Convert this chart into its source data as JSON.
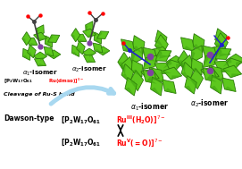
{
  "bg_color": "#ffffff",
  "fig_width": 2.71,
  "fig_height": 1.89,
  "dpi": 100,
  "green_light": "#5dc81e",
  "green_mid": "#3da010",
  "green_dark": "#2a7808",
  "purple_color": "#8040a0",
  "red_color": "#ff0000",
  "arrow_color": "#a8d8f0",
  "black": "#000000",
  "gray_atom": "#404040",
  "blue_atom": "#2020cc"
}
